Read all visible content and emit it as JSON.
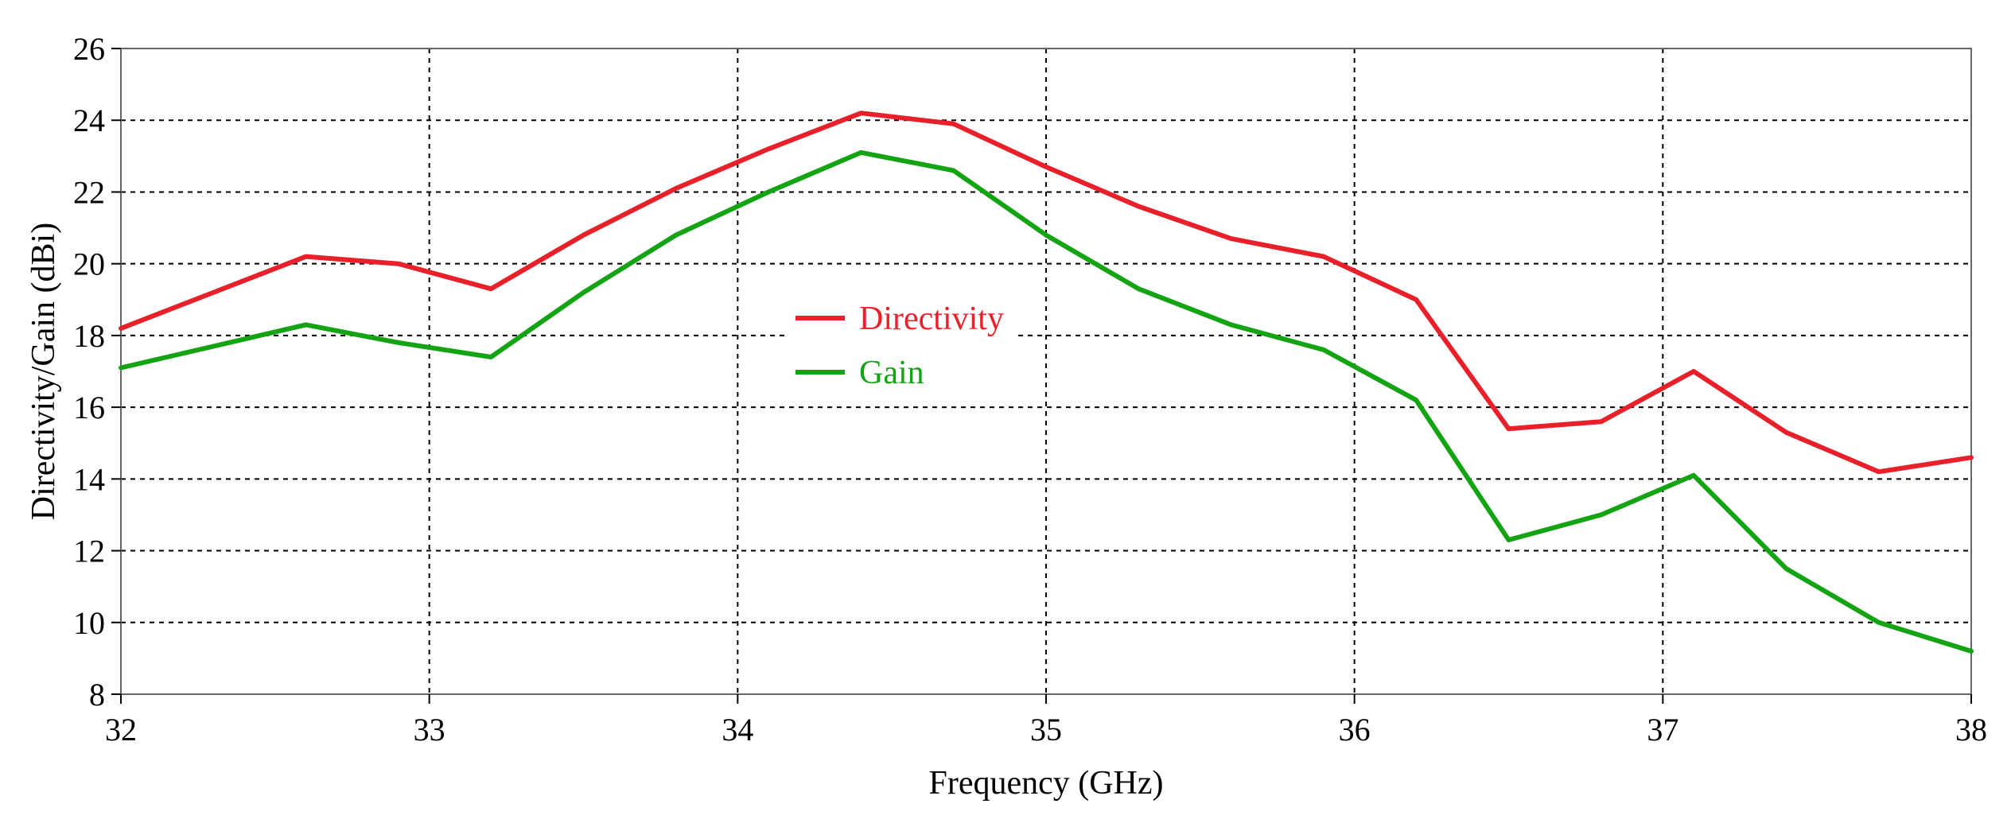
{
  "chart_data": {
    "type": "line",
    "title": "",
    "xlabel": "Frequency (GHz)",
    "ylabel": "Directivity/Gain (dBi)",
    "xlim": [
      32,
      38
    ],
    "ylim": [
      8,
      26
    ],
    "xticks": [
      32,
      33,
      34,
      35,
      36,
      37,
      38
    ],
    "yticks": [
      8,
      10,
      12,
      14,
      16,
      18,
      20,
      22,
      24,
      26
    ],
    "grid": true,
    "legend": "center-left inside plot",
    "series": [
      {
        "name": "Directivity",
        "color": "#e8202a",
        "x": [
          32,
          32.6,
          32.9,
          33.2,
          33.5,
          33.8,
          34.1,
          34.4,
          34.7,
          35.0,
          35.3,
          35.6,
          35.9,
          36.2,
          36.5,
          36.8,
          37.1,
          37.4,
          37.7,
          38.0
        ],
        "y": [
          18.2,
          20.2,
          20.0,
          19.3,
          20.8,
          22.1,
          23.2,
          24.2,
          23.9,
          22.7,
          21.6,
          20.7,
          20.2,
          19.0,
          15.4,
          15.6,
          17.0,
          15.3,
          14.2,
          14.6
        ]
      },
      {
        "name": "Gain",
        "color": "#13a313",
        "x": [
          32,
          32.6,
          32.9,
          33.2,
          33.5,
          33.8,
          34.1,
          34.4,
          34.7,
          35.0,
          35.3,
          35.6,
          35.9,
          36.2,
          36.5,
          36.8,
          37.1,
          37.4,
          37.7,
          38.0
        ],
        "y": [
          17.1,
          18.3,
          17.8,
          17.4,
          19.2,
          20.8,
          22.0,
          23.1,
          22.6,
          20.8,
          19.3,
          18.3,
          17.6,
          16.2,
          12.3,
          13.0,
          14.1,
          11.5,
          10.0,
          9.2
        ]
      }
    ]
  }
}
